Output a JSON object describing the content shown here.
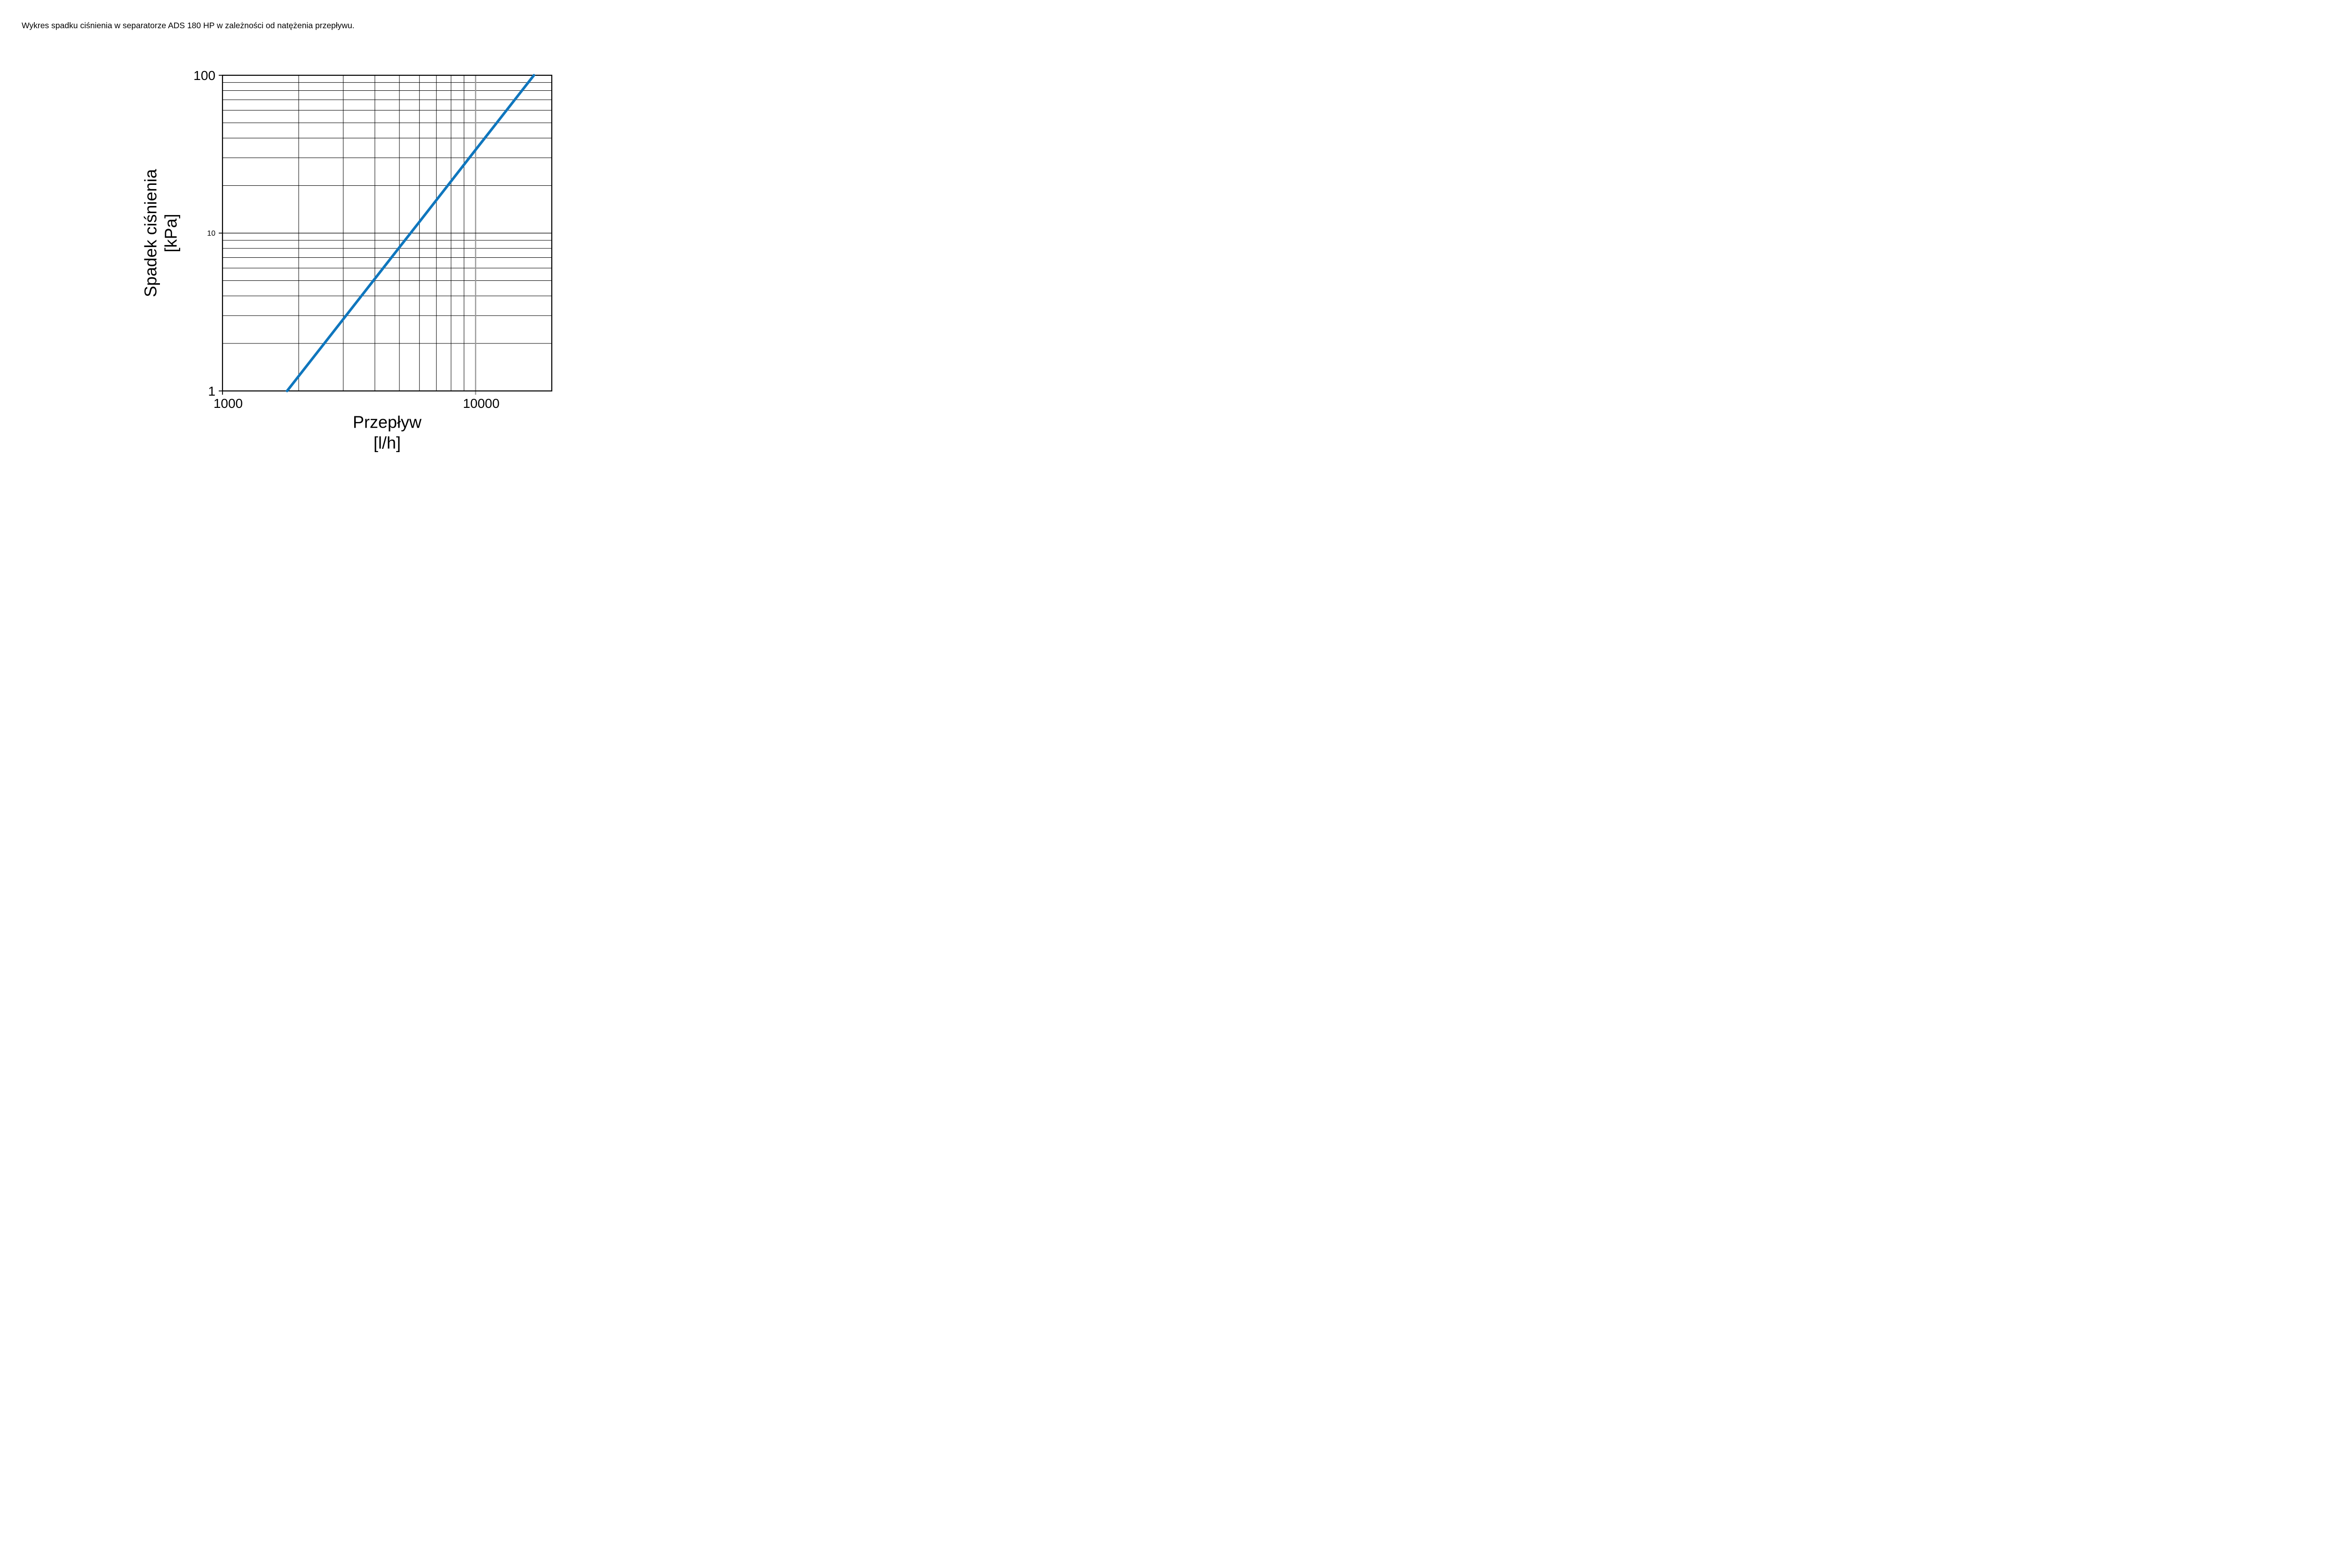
{
  "title": "Wykres spadku ciśnienia w separatorze ADS 180 HP w zależności od natężenia przepływu.",
  "chart_data": {
    "type": "line",
    "title": "",
    "x_axis": {
      "label": "Przepływ",
      "unit": "[l/h]",
      "scale": "log",
      "min": 1000,
      "max": 20000,
      "major_ticks": [
        {
          "value": 1000,
          "label": "1000"
        },
        {
          "value": 10000,
          "label": "10000"
        }
      ],
      "minor_gridlines": [
        2000,
        3000,
        4000,
        5000,
        6000,
        7000,
        8000,
        9000
      ]
    },
    "y_axis": {
      "label": "Spadek ciśnienia",
      "unit": "[kPa]",
      "scale": "log",
      "min": 1,
      "max": 100,
      "major_ticks": [
        {
          "value": 1,
          "label": "1",
          "small": false
        },
        {
          "value": 10,
          "label": "10",
          "small": true
        },
        {
          "value": 100,
          "label": "100",
          "small": false
        }
      ],
      "minor_gridlines": [
        2,
        3,
        4,
        5,
        6,
        7,
        8,
        9,
        20,
        30,
        40,
        50,
        60,
        70,
        80,
        90
      ]
    },
    "series": [
      {
        "color": "#0f76bd",
        "points": [
          [
            1800,
            1.0
          ],
          [
            2500,
            1.96
          ],
          [
            3000,
            2.85
          ],
          [
            4000,
            5.14
          ],
          [
            5000,
            8.13
          ],
          [
            6000,
            11.8
          ],
          [
            8000,
            21.3
          ],
          [
            10000,
            33.7
          ],
          [
            12000,
            48.9
          ],
          [
            15000,
            77.4
          ],
          [
            17000,
            100.0
          ]
        ]
      }
    ],
    "grid": true,
    "legend": false,
    "colors": {
      "minor_gridline": "#000000",
      "x_major_gridline": "#999999",
      "axis_border": "#000000"
    }
  }
}
